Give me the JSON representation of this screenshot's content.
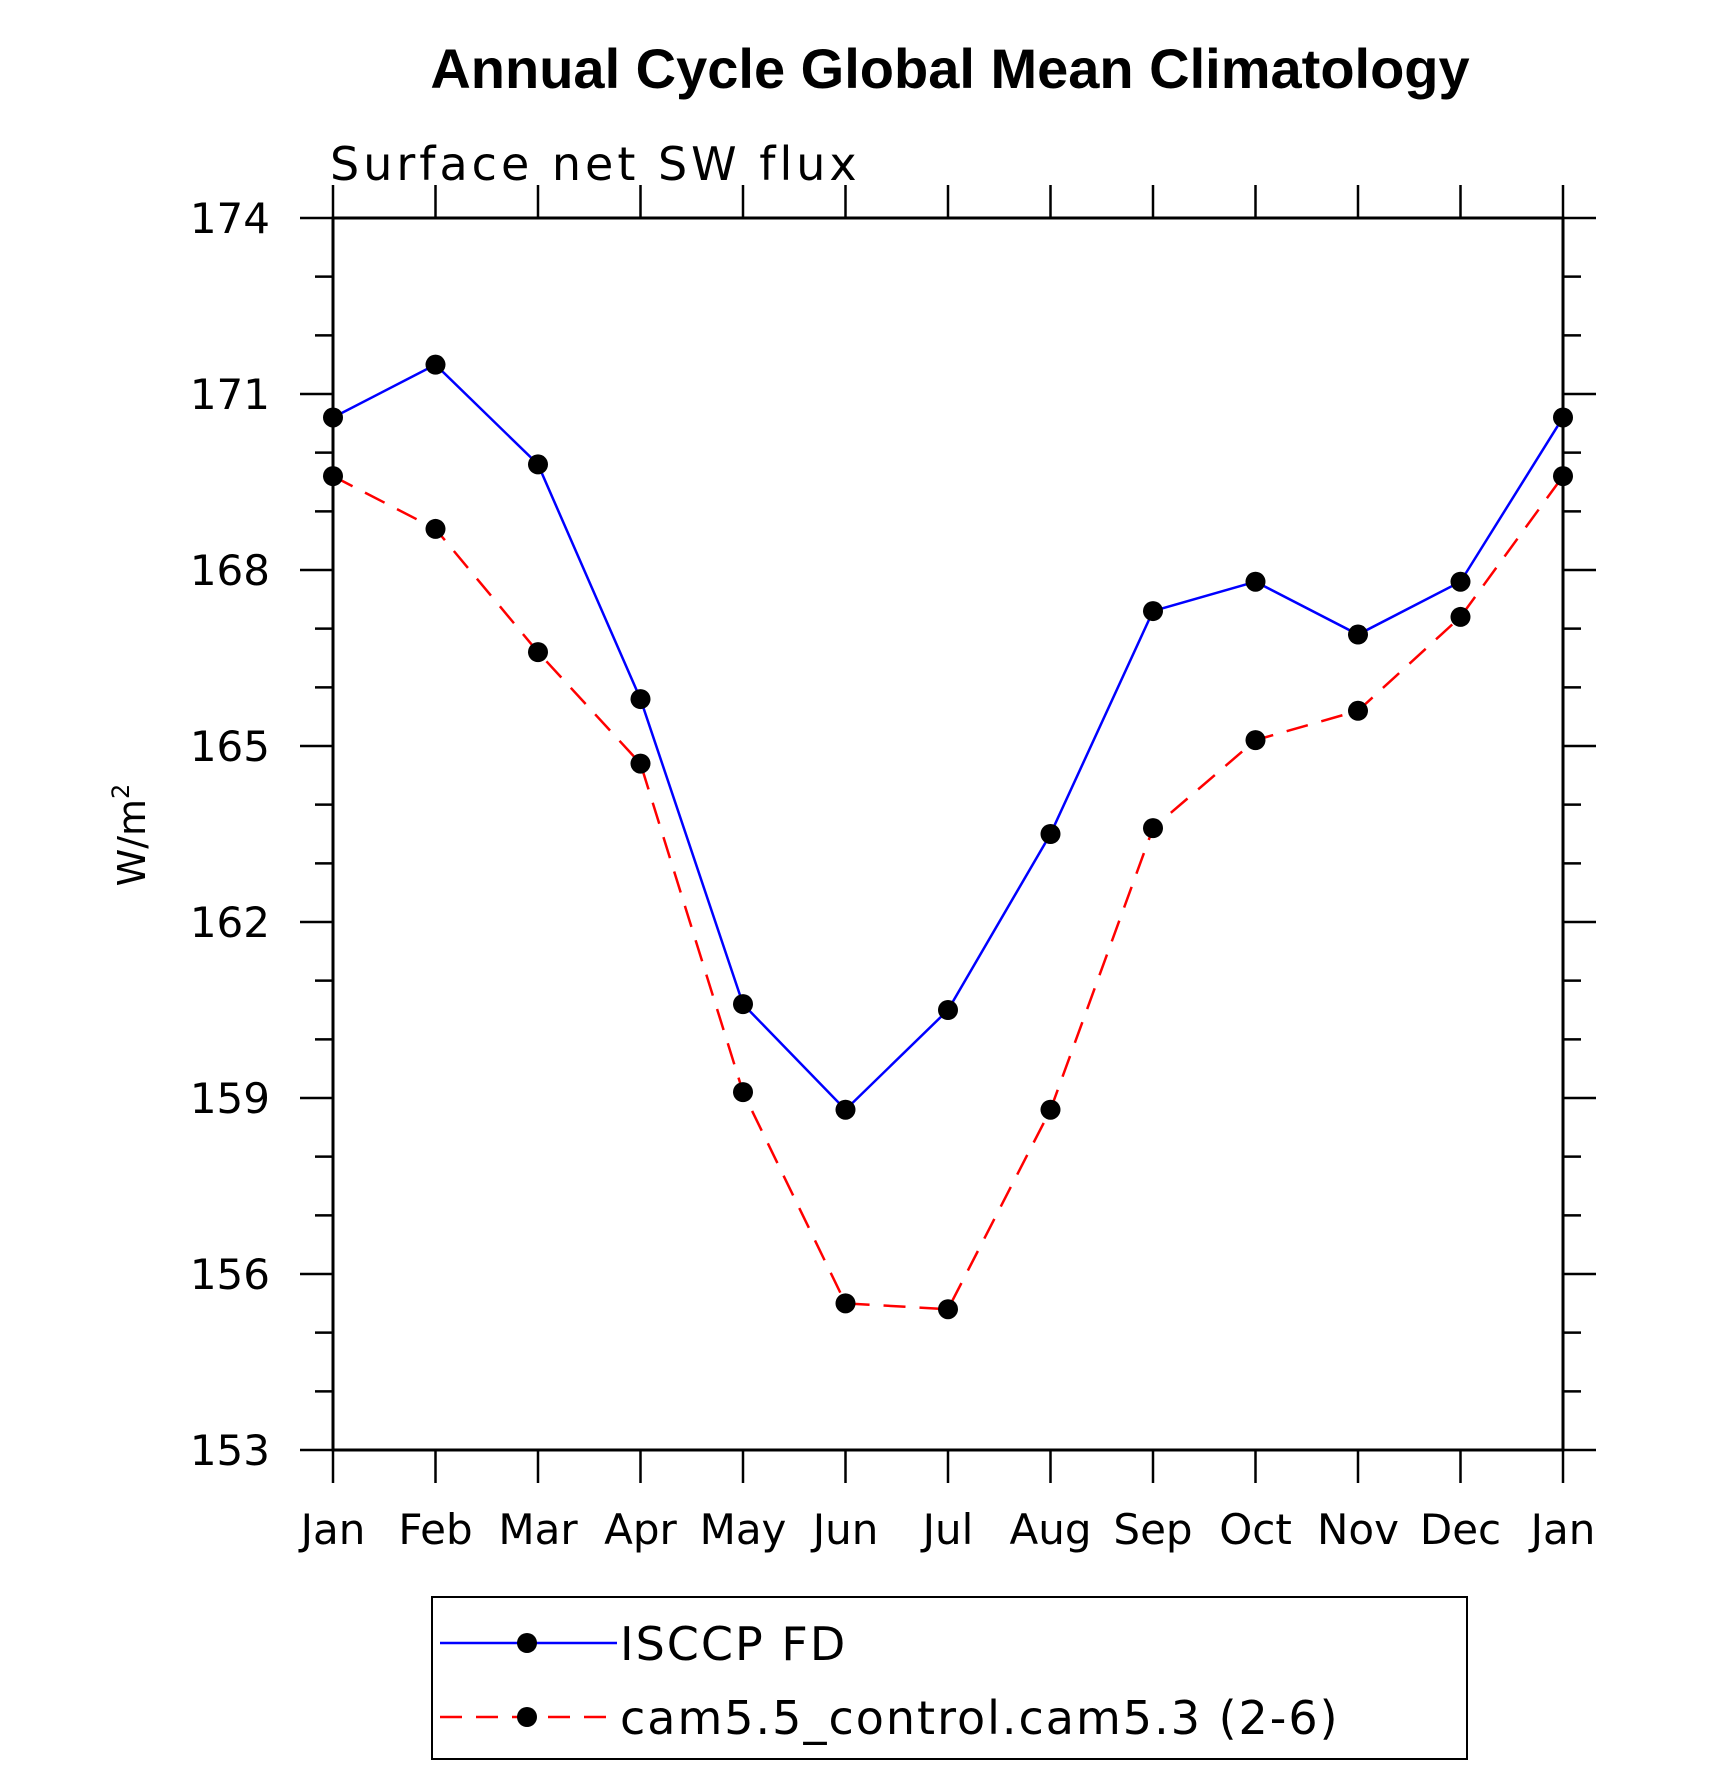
{
  "chart_data": {
    "type": "line",
    "title": "Annual Cycle Global Mean Climatology",
    "subtitle": "Surface net SW flux",
    "ylabel": "W/m",
    "ylabel_sup": "2",
    "xlabel": "",
    "categories": [
      "Jan",
      "Feb",
      "Mar",
      "Apr",
      "May",
      "Jun",
      "Jul",
      "Aug",
      "Sep",
      "Oct",
      "Nov",
      "Dec",
      "Jan"
    ],
    "ylim": [
      153,
      174
    ],
    "yticks": [
      153,
      156,
      159,
      162,
      165,
      168,
      171,
      174
    ],
    "grid": false,
    "legend_position": "bottom",
    "series": [
      {
        "name": "ISCCP FD",
        "color": "#0000ff",
        "style": "solid",
        "values": [
          170.6,
          171.5,
          169.8,
          165.8,
          160.6,
          158.8,
          160.5,
          163.5,
          167.3,
          167.8,
          166.9,
          167.8,
          170.6
        ]
      },
      {
        "name": "cam5.5_control.cam5.3 (2-6)",
        "color": "#ff0000",
        "style": "dashed",
        "values": [
          169.6,
          168.7,
          166.6,
          164.7,
          159.1,
          155.5,
          155.4,
          158.8,
          163.6,
          165.1,
          165.6,
          167.2,
          169.6
        ]
      }
    ]
  }
}
